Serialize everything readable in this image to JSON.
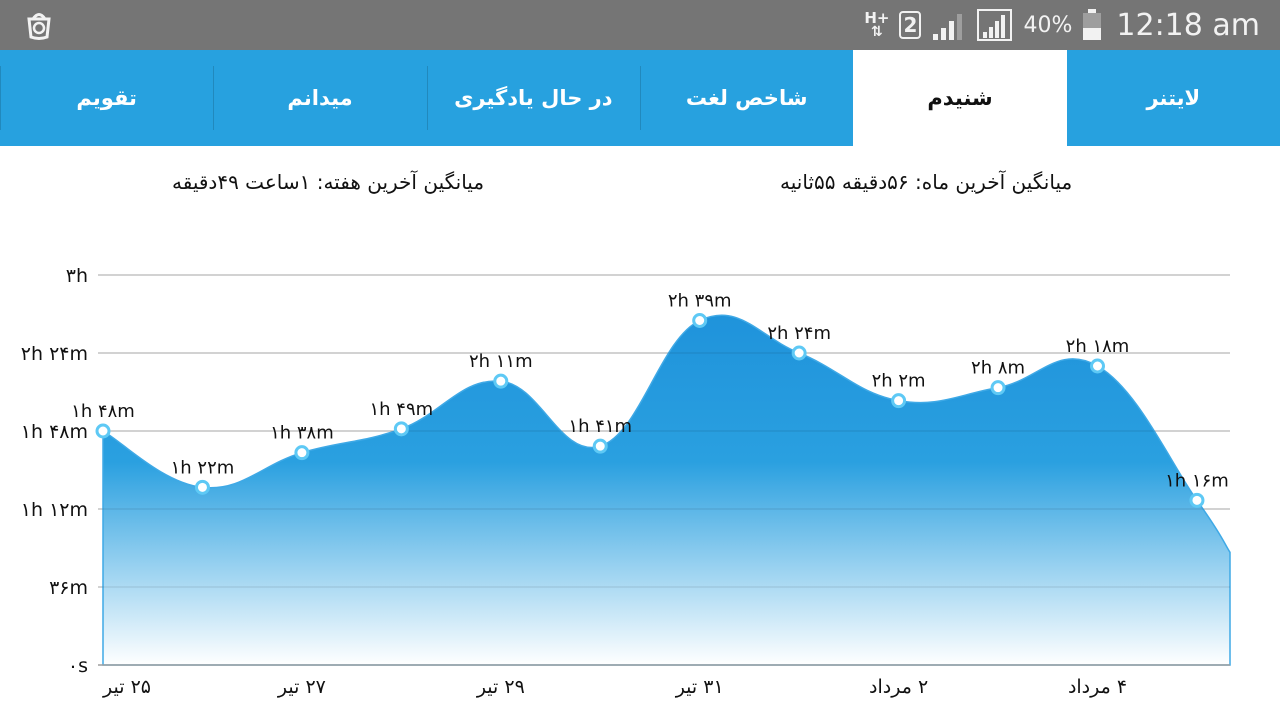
{
  "status_bar": {
    "network_type": "H+",
    "sim_slot": "2",
    "battery": "40%",
    "time": "12:18 am",
    "icons": [
      "app-logo-icon",
      "data-transfer-icon",
      "sim-card-icon",
      "signal-icon",
      "signal-roaming-icon",
      "battery-icon"
    ]
  },
  "tabs": [
    {
      "label": "لایتنر",
      "active": false
    },
    {
      "label": "شنیدم",
      "active": true
    },
    {
      "label": "شاخص لغت",
      "active": false
    },
    {
      "label": "در حال یادگیری",
      "active": false
    },
    {
      "label": "میدانم",
      "active": false
    },
    {
      "label": "تقویم",
      "active": false
    }
  ],
  "averages": {
    "month": "میانگین آخرین ماه: ۵۶دقیقه  ۵۵ثانیه",
    "week": "میانگین آخرین هفته: ۱ساعت  ۴۹دقیقه"
  },
  "colors": {
    "tab_bar": "#27a1df",
    "series": "#2aa0e0",
    "grid": "#bdbdbd",
    "status_bar": "#757575"
  },
  "chart_data": {
    "type": "area",
    "x": [
      "۲۵ تیر",
      "۲۶ تیر",
      "۲۷ تیر",
      "۲۸ تیر",
      "۲۹ تیر",
      "۳۰ تیر",
      "۳۱ تیر",
      "۱ مرداد",
      "۲ مرداد",
      "۳ مرداد",
      "۴ مرداد",
      "۵ مرداد"
    ],
    "x_tick_labels": [
      {
        "label": "۲۵ تیر",
        "x": "۲۵ تیر"
      },
      {
        "label": "۲۷ تیر",
        "x": "۲۷ تیر"
      },
      {
        "label": "۲۹ تیر",
        "x": "۲۹ تیر"
      },
      {
        "label": "۳۱ تیر",
        "x": "۳۱ تیر"
      },
      {
        "label": "۲ مرداد",
        "x": "۲ مرداد"
      },
      {
        "label": "۴ مرداد",
        "x": "۴ مرداد"
      }
    ],
    "y_unit": "minutes",
    "values": [
      108,
      82,
      98,
      109,
      131,
      101,
      159,
      144,
      122,
      128,
      138,
      76
    ],
    "data_labels": [
      "۱h ۴۸m",
      "۱h ۲۲m",
      "۱h ۳۸m",
      "۱h ۴۹m",
      "۲h ۱۱m",
      "۱h ۴۱m",
      "۲h ۳۹m",
      "۲h ۲۴m",
      "۲h ۲m",
      "۲h ۸m",
      "۲h ۱۸m",
      "۱h ۱۶m"
    ],
    "y_ticks": [
      {
        "value": 0,
        "label": "۰s"
      },
      {
        "value": 36,
        "label": "۳۶m"
      },
      {
        "value": 72,
        "label": "۱h ۱۲m"
      },
      {
        "value": 108,
        "label": "۱h ۴۸m"
      },
      {
        "value": 144,
        "label": "۲h ۲۴m"
      },
      {
        "value": 180,
        "label": "۳h"
      }
    ],
    "ylim": [
      0,
      180
    ],
    "trailing_value": 52,
    "grid": true,
    "legend": "none"
  }
}
